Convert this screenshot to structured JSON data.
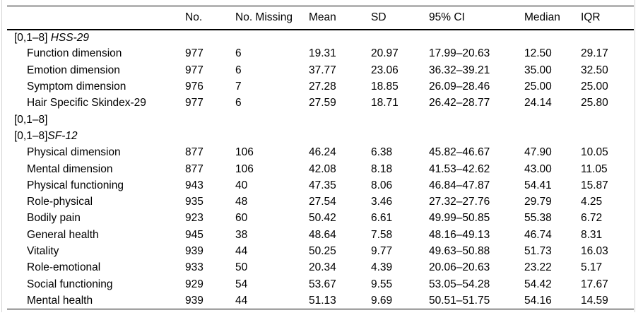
{
  "table": {
    "columns": [
      "",
      "No.",
      "No. Missing",
      "Mean",
      "SD",
      "95% CI",
      "Median",
      "IQR"
    ],
    "rows": [
      {
        "prefix": "[0,1–8] ",
        "italic": "HSS-29",
        "indent": false,
        "cells": [
          "",
          "",
          "",
          "",
          "",
          "",
          ""
        ]
      },
      {
        "prefix": "Function dimension",
        "italic": "",
        "indent": true,
        "cells": [
          "977",
          "6",
          "19.31",
          "20.97",
          "17.99–20.63",
          "12.50",
          "29.17"
        ]
      },
      {
        "prefix": "Emotion dimension",
        "italic": "",
        "indent": true,
        "cells": [
          "977",
          "6",
          "37.77",
          "23.06",
          "36.32–39.21",
          "35.00",
          "32.50"
        ]
      },
      {
        "prefix": "Symptom dimension",
        "italic": "",
        "indent": true,
        "cells": [
          "976",
          "7",
          "27.28",
          "18.85",
          "26.09–28.46",
          "25.00",
          "25.00"
        ]
      },
      {
        "prefix": "Hair Specific Skindex-29",
        "italic": "",
        "indent": true,
        "cells": [
          "977",
          "6",
          "27.59",
          "18.71",
          "26.42–28.77",
          "24.14",
          "25.80"
        ]
      },
      {
        "prefix": "[0,1–8]",
        "italic": "",
        "indent": false,
        "cells": [
          "",
          "",
          "",
          "",
          "",
          "",
          ""
        ]
      },
      {
        "prefix": "[0,1–8]",
        "italic": "SF-12",
        "indent": false,
        "cells": [
          "",
          "",
          "",
          "",
          "",
          "",
          ""
        ]
      },
      {
        "prefix": "Physical dimension",
        "italic": "",
        "indent": true,
        "cells": [
          "877",
          "106",
          "46.24",
          "6.38",
          "45.82–46.67",
          "47.90",
          "10.05"
        ]
      },
      {
        "prefix": "Mental dimension",
        "italic": "",
        "indent": true,
        "cells": [
          "877",
          "106",
          "42.08",
          "8.18",
          "41.53–42.62",
          "43.00",
          "11.05"
        ]
      },
      {
        "prefix": "Physical functioning",
        "italic": "",
        "indent": true,
        "cells": [
          "943",
          "40",
          "47.35",
          "8.06",
          "46.84–47.87",
          "54.41",
          "15.87"
        ]
      },
      {
        "prefix": "Role-physical",
        "italic": "",
        "indent": true,
        "cells": [
          "935",
          "48",
          "27.54",
          "3.46",
          "27.32–27.76",
          "29.79",
          "4.25"
        ]
      },
      {
        "prefix": "Bodily pain",
        "italic": "",
        "indent": true,
        "cells": [
          "923",
          "60",
          "50.42",
          "6.61",
          "49.99–50.85",
          "55.38",
          "6.72"
        ]
      },
      {
        "prefix": "General health",
        "italic": "",
        "indent": true,
        "cells": [
          "945",
          "38",
          "48.64",
          "7.58",
          "48.16–49.13",
          "46.74",
          "8.31"
        ]
      },
      {
        "prefix": "Vitality",
        "italic": "",
        "indent": true,
        "cells": [
          "939",
          "44",
          "50.25",
          "9.77",
          "49.63–50.88",
          "51.73",
          "16.03"
        ]
      },
      {
        "prefix": "Role-emotional",
        "italic": "",
        "indent": true,
        "cells": [
          "933",
          "50",
          "20.34",
          "4.39",
          "20.06–20.63",
          "23.22",
          "5.17"
        ]
      },
      {
        "prefix": "Social functioning",
        "italic": "",
        "indent": true,
        "cells": [
          "929",
          "54",
          "53.67",
          "9.55",
          "53.05–54.28",
          "54.42",
          "17.67"
        ]
      },
      {
        "prefix": "Mental health",
        "italic": "",
        "indent": true,
        "cells": [
          "939",
          "44",
          "51.13",
          "9.69",
          "50.51–51.75",
          "54.16",
          "14.59"
        ]
      }
    ]
  }
}
